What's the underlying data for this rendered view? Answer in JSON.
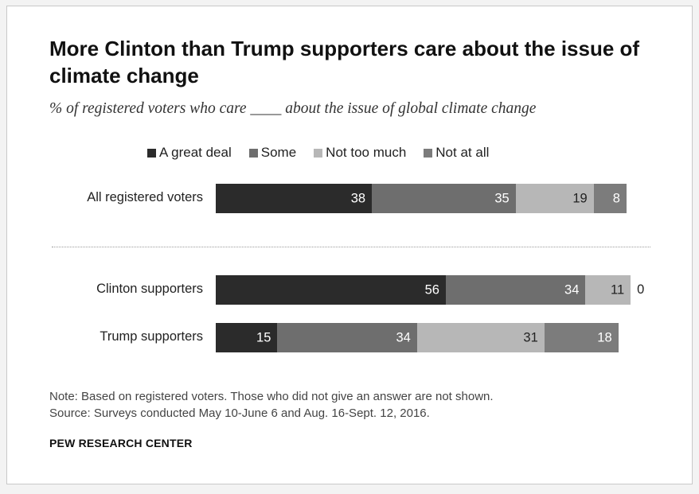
{
  "chart": {
    "title": "More Clinton than Trump supporters care about the issue of climate change",
    "subtitle": "% of registered voters who care ____ about the issue of global climate change",
    "note": "Note: Based on registered voters. Those who did not give an answer are not shown.",
    "source": "Source: Surveys conducted May 10-June 6 and Aug. 16-Sept. 12, 2016.",
    "org": "PEW RESEARCH CENTER"
  },
  "legend": [
    {
      "label": "A great deal",
      "color": "#2b2b2b"
    },
    {
      "label": "Some",
      "color": "#6e6e6e"
    },
    {
      "label": "Not too much",
      "color": "#b7b7b7"
    },
    {
      "label": "Not at all",
      "color": "#7c7c7c"
    }
  ],
  "chart_data": {
    "type": "bar",
    "orientation": "horizontal",
    "stacked": true,
    "title": "More Clinton than Trump supporters care about the issue of climate change",
    "subtitle": "% of registered voters who care ____ about the issue of global climate change",
    "categories": [
      "All registered voters",
      "Clinton supporters",
      "Trump supporters"
    ],
    "series": [
      {
        "name": "A great deal",
        "values": [
          38,
          56,
          15
        ],
        "color": "#2b2b2b"
      },
      {
        "name": "Some",
        "values": [
          35,
          34,
          34
        ],
        "color": "#6e6e6e"
      },
      {
        "name": "Not too much",
        "values": [
          19,
          11,
          31
        ],
        "color": "#b7b7b7"
      },
      {
        "name": "Not at all",
        "values": [
          8,
          0,
          18
        ],
        "color": "#7c7c7c"
      }
    ],
    "xlim": [
      0,
      100
    ],
    "legend_position": "top",
    "grid": false
  }
}
